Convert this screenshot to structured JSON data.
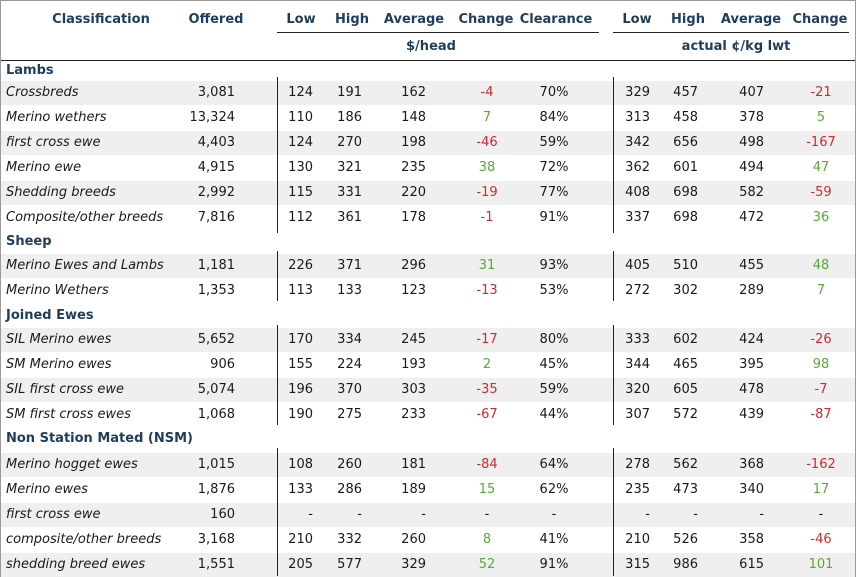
{
  "headers": {
    "classification": "Classification",
    "offered": "Offered",
    "low1": "Low",
    "high1": "High",
    "average1": "Average",
    "change1": "Change",
    "clearance": "Clearance",
    "low2": "Low",
    "high2": "High",
    "average2": "Average",
    "change2": "Change",
    "unit_head": "$/head",
    "unit_kg": "actual ¢/kg lwt"
  },
  "sections": {
    "lambs": "Lambs",
    "sheep": "Sheep",
    "joined": "Joined Ewes",
    "nsm": "Non Station Mated (NSM)"
  },
  "rows": [
    {
      "name": "Crossbreds",
      "offered": "3,081",
      "low": "124",
      "high": "191",
      "avg": "162",
      "change": "-4",
      "clearance": "70%",
      "low_kg": "329",
      "high_kg": "457",
      "avg_kg": "407",
      "change_kg": "-21"
    },
    {
      "name": "Merino wethers",
      "offered": "13,324",
      "low": "110",
      "high": "186",
      "avg": "148",
      "change": "7",
      "clearance": "84%",
      "low_kg": "313",
      "high_kg": "458",
      "avg_kg": "378",
      "change_kg": "5"
    },
    {
      "name": "first cross ewe",
      "offered": "4,403",
      "low": "124",
      "high": "270",
      "avg": "198",
      "change": "-46",
      "clearance": "59%",
      "low_kg": "342",
      "high_kg": "656",
      "avg_kg": "498",
      "change_kg": "-167"
    },
    {
      "name": "Merino ewe",
      "offered": "4,915",
      "low": "130",
      "high": "321",
      "avg": "235",
      "change": "38",
      "clearance": "72%",
      "low_kg": "362",
      "high_kg": "601",
      "avg_kg": "494",
      "change_kg": "47"
    },
    {
      "name": "Shedding breeds",
      "offered": "2,992",
      "low": "115",
      "high": "331",
      "avg": "220",
      "change": "-19",
      "clearance": "77%",
      "low_kg": "408",
      "high_kg": "698",
      "avg_kg": "582",
      "change_kg": "-59"
    },
    {
      "name": "Composite/other breeds",
      "offered": "7,816",
      "low": "112",
      "high": "361",
      "avg": "178",
      "change": "-1",
      "clearance": "91%",
      "low_kg": "337",
      "high_kg": "698",
      "avg_kg": "472",
      "change_kg": "36"
    },
    {
      "name": "Merino Ewes and Lambs",
      "offered": "1,181",
      "low": "226",
      "high": "371",
      "avg": "296",
      "change": "31",
      "clearance": "93%",
      "low_kg": "405",
      "high_kg": "510",
      "avg_kg": "455",
      "change_kg": "48"
    },
    {
      "name": "Merino Wethers",
      "offered": "1,353",
      "low": "113",
      "high": "133",
      "avg": "123",
      "change": "-13",
      "clearance": "53%",
      "low_kg": "272",
      "high_kg": "302",
      "avg_kg": "289",
      "change_kg": "7"
    },
    {
      "name": "SIL Merino ewes",
      "offered": "5,652",
      "low": "170",
      "high": "334",
      "avg": "245",
      "change": "-17",
      "clearance": "80%",
      "low_kg": "333",
      "high_kg": "602",
      "avg_kg": "424",
      "change_kg": "-26"
    },
    {
      "name": "SM Merino ewes",
      "offered": "906",
      "low": "155",
      "high": "224",
      "avg": "193",
      "change": "2",
      "clearance": "45%",
      "low_kg": "344",
      "high_kg": "465",
      "avg_kg": "395",
      "change_kg": "98"
    },
    {
      "name": "SIL first cross ewe",
      "offered": "5,074",
      "low": "196",
      "high": "370",
      "avg": "303",
      "change": "-35",
      "clearance": "59%",
      "low_kg": "320",
      "high_kg": "605",
      "avg_kg": "478",
      "change_kg": "-7"
    },
    {
      "name": "SM first cross ewes",
      "offered": "1,068",
      "low": "190",
      "high": "275",
      "avg": "233",
      "change": "-67",
      "clearance": "44%",
      "low_kg": "307",
      "high_kg": "572",
      "avg_kg": "439",
      "change_kg": "-87"
    },
    {
      "name": "Merino hogget ewes",
      "offered": "1,015",
      "low": "108",
      "high": "260",
      "avg": "181",
      "change": "-84",
      "clearance": "64%",
      "low_kg": "278",
      "high_kg": "562",
      "avg_kg": "368",
      "change_kg": "-162"
    },
    {
      "name": "Merino ewes",
      "offered": "1,876",
      "low": "133",
      "high": "286",
      "avg": "189",
      "change": "15",
      "clearance": "62%",
      "low_kg": "235",
      "high_kg": "473",
      "avg_kg": "340",
      "change_kg": "17"
    },
    {
      "name": "first cross ewe",
      "offered": "160",
      "low": "-",
      "high": "-",
      "avg": "-",
      "change": "-",
      "clearance": "-",
      "low_kg": "-",
      "high_kg": "-",
      "avg_kg": "-",
      "change_kg": "-"
    },
    {
      "name": "composite/other breeds",
      "offered": "3,168",
      "low": "210",
      "high": "332",
      "avg": "260",
      "change": "8",
      "clearance": "41%",
      "low_kg": "210",
      "high_kg": "526",
      "avg_kg": "358",
      "change_kg": "-46"
    },
    {
      "name": "shedding breed ewes",
      "offered": "1,551",
      "low": "205",
      "high": "577",
      "avg": "329",
      "change": "52",
      "clearance": "91%",
      "low_kg": "315",
      "high_kg": "986",
      "avg_kg": "615",
      "change_kg": "101"
    }
  ],
  "colors": {
    "header_text": "#1f3d5c",
    "negative": "#d12b2b",
    "positive": "#5aa83a",
    "row_shade": "#efefef"
  }
}
